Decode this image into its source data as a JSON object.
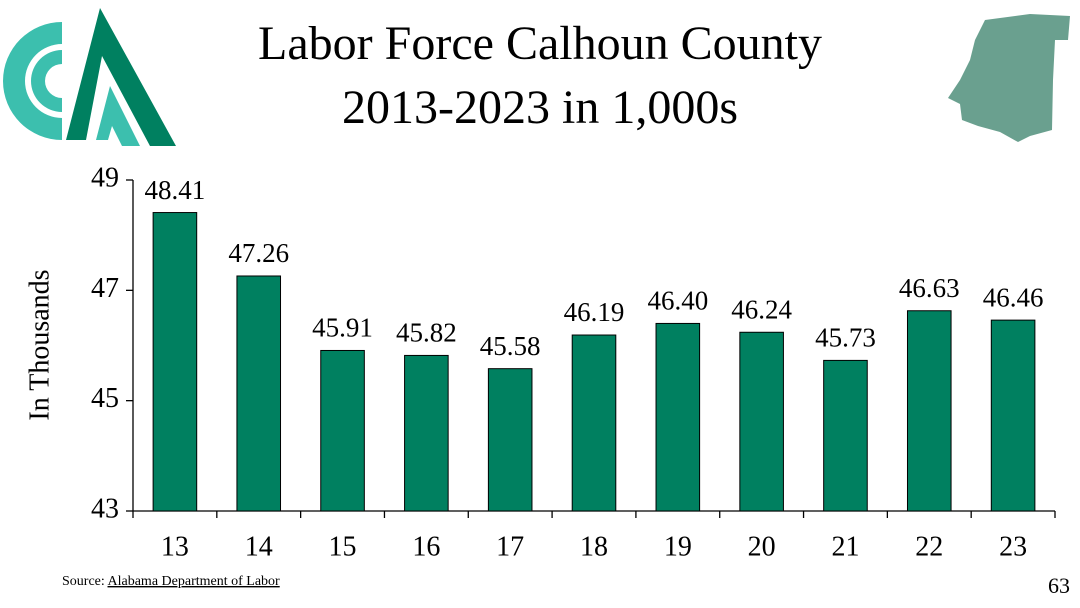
{
  "chart_data": {
    "type": "bar",
    "title": [
      "Labor Force Calhoun County",
      "2013-2023 in 1,000s"
    ],
    "y_label": "In Thousands",
    "categories": [
      "13",
      "14",
      "15",
      "16",
      "17",
      "18",
      "19",
      "20",
      "21",
      "22",
      "23"
    ],
    "values": [
      48.41,
      47.26,
      45.91,
      45.82,
      45.58,
      46.19,
      46.4,
      46.24,
      45.73,
      46.63,
      46.46
    ],
    "value_labels": [
      "48.41",
      "47.26",
      "45.91",
      "45.82",
      "45.58",
      "46.19",
      "46.40",
      "46.24",
      "45.73",
      "46.63",
      "46.46"
    ],
    "color": "#008060",
    "ylim": [
      43,
      49
    ],
    "yticks": [
      43,
      45,
      47,
      49
    ],
    "grid": false,
    "source_prefix": "Source:",
    "source_link": "Alabama Department of Labor",
    "page_number": "63"
  }
}
